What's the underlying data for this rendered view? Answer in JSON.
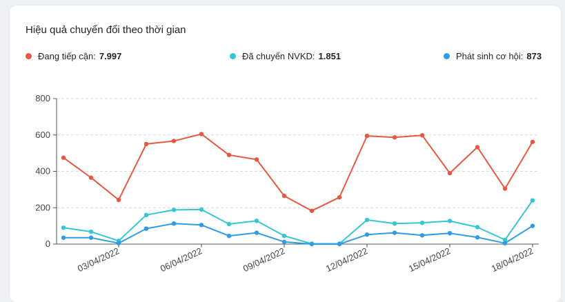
{
  "title": "Hiệu quả chuyển đổi theo thời gian",
  "legend": [
    {
      "label": "Đang tiếp cận:",
      "value": "7.997",
      "color": "#e9573f"
    },
    {
      "label": "Đã chuyển NVKD:",
      "value": "1.851",
      "color": "#34c6d3"
    },
    {
      "label": "Phát sinh cơ hội:",
      "value": "873",
      "color": "#2f9be6"
    }
  ],
  "chart_data": {
    "type": "line",
    "x": [
      "01/04/2022",
      "02/04/2022",
      "03/04/2022",
      "04/04/2022",
      "05/04/2022",
      "06/04/2022",
      "07/04/2022",
      "08/04/2022",
      "09/04/2022",
      "10/04/2022",
      "11/04/2022",
      "12/04/2022",
      "13/04/2022",
      "14/04/2022",
      "15/04/2022",
      "16/04/2022",
      "17/04/2022",
      "18/04/2022"
    ],
    "x_tick_labels": [
      "03/04/2022",
      "06/04/2022",
      "09/04/2022",
      "12/04/2022",
      "15/04/2022",
      "18/04/2022"
    ],
    "ylim": [
      0,
      800
    ],
    "y_ticks": [
      "0",
      "200",
      "400",
      "600",
      "800"
    ],
    "grid": "horizontal-dashed",
    "series": [
      {
        "name": "Đang tiếp cận",
        "color": "#e9573f",
        "values": [
          475,
          365,
          243,
          550,
          567,
          605,
          490,
          465,
          265,
          183,
          257,
          595,
          587,
          598,
          390,
          533,
          305,
          562
        ]
      },
      {
        "name": "Đã chuyển NVKD",
        "color": "#34c6d3",
        "values": [
          90,
          68,
          18,
          160,
          188,
          190,
          110,
          128,
          45,
          2,
          2,
          133,
          113,
          117,
          127,
          93,
          23,
          240
        ]
      },
      {
        "name": "Phát sinh cơ hội",
        "color": "#2f9be6",
        "values": [
          35,
          35,
          5,
          85,
          113,
          105,
          45,
          62,
          12,
          0,
          0,
          52,
          62,
          48,
          60,
          37,
          5,
          100
        ]
      }
    ]
  }
}
